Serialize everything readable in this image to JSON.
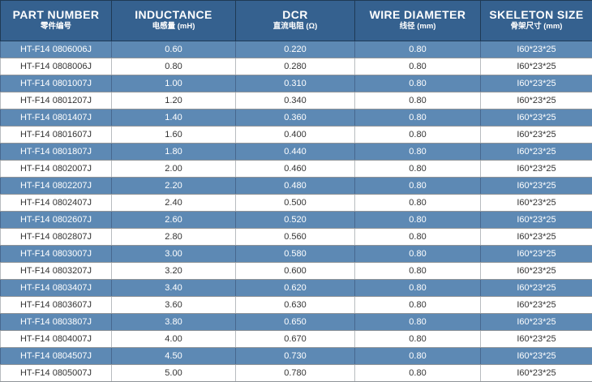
{
  "colors": {
    "header_bg": "#35618f",
    "header_border": "#1f3a55",
    "row_blue_bg": "#5d89b4",
    "row_blue_border": "#47688f",
    "row_white_bg": "#ffffff",
    "row_white_border": "#b8bcc0",
    "row_separator": "#8f9499",
    "text_dark": "#333333",
    "text_light": "#ffffff"
  },
  "table": {
    "columns": [
      {
        "key": "part-number",
        "en": "PART NUMBER",
        "zh": "零件编号"
      },
      {
        "key": "inductance",
        "en": "INDUCTANCE",
        "zh": "电感量 (mH)"
      },
      {
        "key": "dcr",
        "en": "DCR",
        "zh": "直流电阻 (Ω)"
      },
      {
        "key": "wire-diameter",
        "en": "WIRE DIAMETER",
        "zh": "线径 (mm)"
      },
      {
        "key": "skeleton-size",
        "en": "SKELETON SIZE",
        "zh": "骨架尺寸 (mm)"
      }
    ],
    "rows": [
      [
        "HT-F14 0806006J",
        "0.60",
        "0.220",
        "0.80",
        "I60*23*25"
      ],
      [
        "HT-F14 0808006J",
        "0.80",
        "0.280",
        "0.80",
        "I60*23*25"
      ],
      [
        "HT-F14 0801007J",
        "1.00",
        "0.310",
        "0.80",
        "I60*23*25"
      ],
      [
        "HT-F14 0801207J",
        "1.20",
        "0.340",
        "0.80",
        "I60*23*25"
      ],
      [
        "HT-F14 0801407J",
        "1.40",
        "0.360",
        "0.80",
        "I60*23*25"
      ],
      [
        "HT-F14 0801607J",
        "1.60",
        "0.400",
        "0.80",
        "I60*23*25"
      ],
      [
        "HT-F14 0801807J",
        "1.80",
        "0.440",
        "0.80",
        "I60*23*25"
      ],
      [
        "HT-F14 0802007J",
        "2.00",
        "0.460",
        "0.80",
        "I60*23*25"
      ],
      [
        "HT-F14 0802207J",
        "2.20",
        "0.480",
        "0.80",
        "I60*23*25"
      ],
      [
        "HT-F14 0802407J",
        "2.40",
        "0.500",
        "0.80",
        "I60*23*25"
      ],
      [
        "HT-F14 0802607J",
        "2.60",
        "0.520",
        "0.80",
        "I60*23*25"
      ],
      [
        "HT-F14 0802807J",
        "2.80",
        "0.560",
        "0.80",
        "I60*23*25"
      ],
      [
        "HT-F14 0803007J",
        "3.00",
        "0.580",
        "0.80",
        "I60*23*25"
      ],
      [
        "HT-F14 0803207J",
        "3.20",
        "0.600",
        "0.80",
        "I60*23*25"
      ],
      [
        "HT-F14 0803407J",
        "3.40",
        "0.620",
        "0.80",
        "I60*23*25"
      ],
      [
        "HT-F14 0803607J",
        "3.60",
        "0.630",
        "0.80",
        "I60*23*25"
      ],
      [
        "HT-F14 0803807J",
        "3.80",
        "0.650",
        "0.80",
        "I60*23*25"
      ],
      [
        "HT-F14 0804007J",
        "4.00",
        "0.670",
        "0.80",
        "I60*23*25"
      ],
      [
        "HT-F14 0804507J",
        "4.50",
        "0.730",
        "0.80",
        "I60*23*25"
      ],
      [
        "HT-F14 0805007J",
        "5.00",
        "0.780",
        "0.80",
        "I60*23*25"
      ]
    ]
  }
}
